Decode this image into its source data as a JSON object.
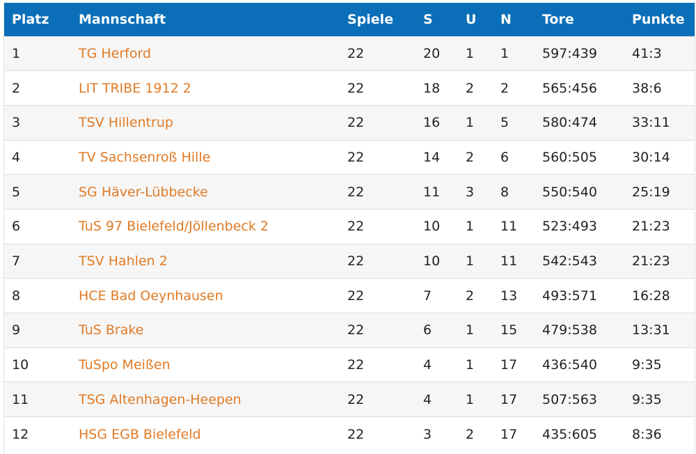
{
  "table": {
    "headers": {
      "platz": "Platz",
      "mannschaft": "Mannschaft",
      "spiele": "Spiele",
      "s": "S",
      "u": "U",
      "n": "N",
      "tore": "Tore",
      "punkte": "Punkte"
    },
    "rows": [
      {
        "platz": "1",
        "team": "TG Herford",
        "spiele": "22",
        "s": "20",
        "u": "1",
        "n": "1",
        "tore": "597:439",
        "punkte": "41:3"
      },
      {
        "platz": "2",
        "team": "LIT TRIBE 1912 2",
        "spiele": "22",
        "s": "18",
        "u": "2",
        "n": "2",
        "tore": "565:456",
        "punkte": "38:6"
      },
      {
        "platz": "3",
        "team": "TSV Hillentrup",
        "spiele": "22",
        "s": "16",
        "u": "1",
        "n": "5",
        "tore": "580:474",
        "punkte": "33:11"
      },
      {
        "platz": "4",
        "team": "TV Sachsenroß Hille",
        "spiele": "22",
        "s": "14",
        "u": "2",
        "n": "6",
        "tore": "560:505",
        "punkte": "30:14"
      },
      {
        "platz": "5",
        "team": "SG Häver-Lübbecke",
        "spiele": "22",
        "s": "11",
        "u": "3",
        "n": "8",
        "tore": "550:540",
        "punkte": "25:19"
      },
      {
        "platz": "6",
        "team": "TuS 97 Bielefeld/Jöllenbeck 2",
        "spiele": "22",
        "s": "10",
        "u": "1",
        "n": "11",
        "tore": "523:493",
        "punkte": "21:23"
      },
      {
        "platz": "7",
        "team": "TSV Hahlen 2",
        "spiele": "22",
        "s": "10",
        "u": "1",
        "n": "11",
        "tore": "542:543",
        "punkte": "21:23"
      },
      {
        "platz": "8",
        "team": "HCE Bad Oeynhausen",
        "spiele": "22",
        "s": "7",
        "u": "2",
        "n": "13",
        "tore": "493:571",
        "punkte": "16:28"
      },
      {
        "platz": "9",
        "team": "TuS Brake",
        "spiele": "22",
        "s": "6",
        "u": "1",
        "n": "15",
        "tore": "479:538",
        "punkte": "13:31"
      },
      {
        "platz": "10",
        "team": "TuSpo Meißen",
        "spiele": "22",
        "s": "4",
        "u": "1",
        "n": "17",
        "tore": "436:540",
        "punkte": "9:35"
      },
      {
        "platz": "11",
        "team": "TSG Altenhagen-Heepen",
        "spiele": "22",
        "s": "4",
        "u": "1",
        "n": "17",
        "tore": "507:563",
        "punkte": "9:35"
      },
      {
        "platz": "12",
        "team": "HSG EGB Bielefeld",
        "spiele": "22",
        "s": "3",
        "u": "2",
        "n": "17",
        "tore": "435:605",
        "punkte": "8:36"
      }
    ]
  },
  "colors": {
    "header_bg": "#0a6fb8",
    "header_text": "#ffffff",
    "team_link": "#e07a24",
    "row_alt": "#f6f6f6",
    "text": "#222222"
  }
}
